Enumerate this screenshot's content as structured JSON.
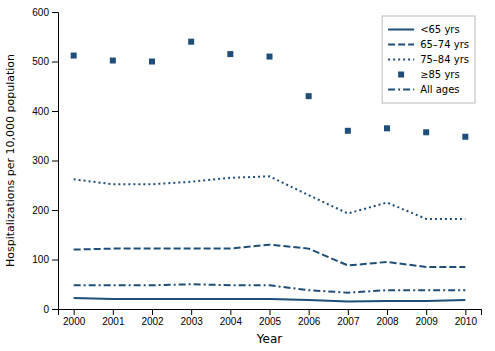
{
  "chart_data": {
    "type": "line",
    "x": [
      2000,
      2001,
      2002,
      2003,
      2004,
      2005,
      2006,
      2007,
      2008,
      2009,
      2010
    ],
    "series": [
      {
        "name": "<65 yrs",
        "color": "#1f4e79",
        "line_style": "solid",
        "values": [
          22,
          20,
          20,
          20,
          20,
          20,
          18,
          15,
          16,
          16,
          18
        ]
      },
      {
        "name": "65–74 yrs",
        "color": "#1f4e79",
        "line_style": "dashed",
        "values": [
          120,
          122,
          122,
          122,
          122,
          130,
          122,
          88,
          95,
          85,
          85
        ]
      },
      {
        "name": "75–84 yrs",
        "color": "#1f4e79",
        "line_style": "dotted",
        "values": [
          262,
          252,
          252,
          257,
          265,
          268,
          230,
          193,
          215,
          182,
          182
        ]
      },
      {
        "name": "≥85 yrs",
        "color": "#1f4e79",
        "line_style": "none",
        "marker": "square",
        "values": [
          512,
          502,
          500,
          540,
          515,
          510,
          430,
          360,
          365,
          357,
          348
        ]
      },
      {
        "name": "All ages",
        "color": "#1f4e79",
        "line_style": "dashdot",
        "values": [
          48,
          48,
          48,
          50,
          48,
          48,
          38,
          33,
          38,
          38,
          38
        ]
      }
    ],
    "xlabel": "Year",
    "ylabel": "Hospitalizations per 10,000 population",
    "xlim": [
      1999.6,
      2010.4
    ],
    "xticks": [
      2000,
      2001,
      2002,
      2003,
      2004,
      2005,
      2006,
      2007,
      2008,
      2009,
      2010
    ],
    "ylim": [
      0,
      600
    ],
    "yticks": [
      0,
      100,
      200,
      300,
      400,
      500,
      600
    ],
    "grid": false,
    "legend": "upper right"
  }
}
